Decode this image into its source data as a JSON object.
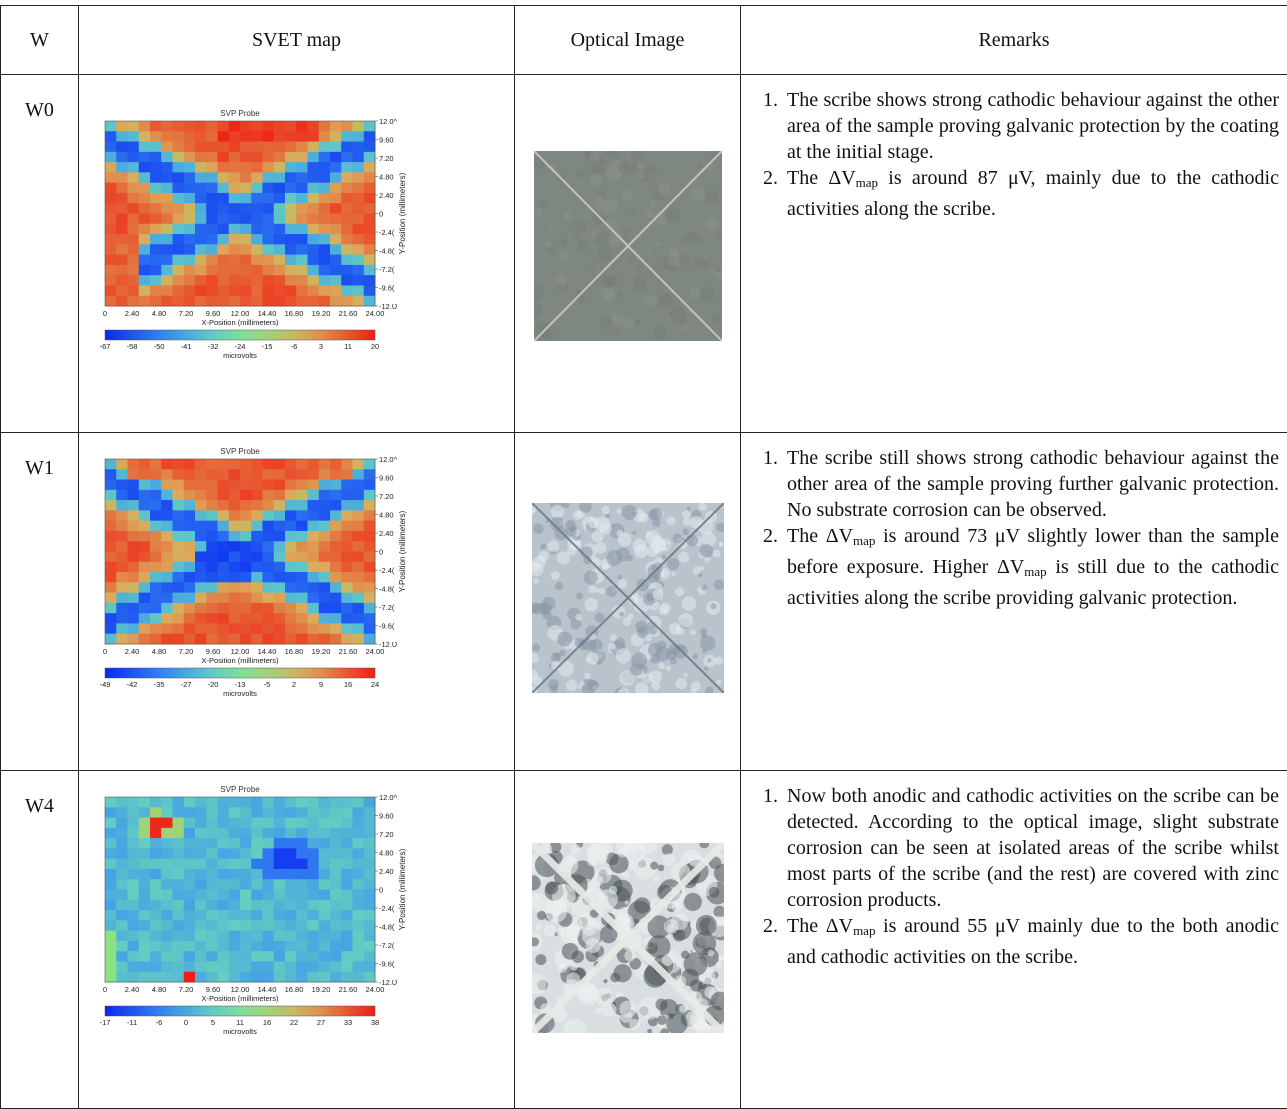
{
  "headers": {
    "w": "W",
    "svet": "SVET map",
    "optical": "Optical Image",
    "remarks": "Remarks"
  },
  "rows": [
    {
      "w": "W0",
      "remarks": [
        {
          "parts": [
            "The scribe shows strong cathodic behaviour against the other area of the sample proving galvanic protection by the coating at the initial stage."
          ]
        },
        {
          "parts": [
            "The ΔV",
            "map",
            " is around 87 μV, mainly due to the cathodic activities along the scribe."
          ]
        }
      ],
      "photo_colors": {
        "base": "#7f8781",
        "line": "#c8cdc4"
      }
    },
    {
      "w": "W1",
      "remarks": [
        {
          "parts": [
            "The scribe still shows strong cathodic behaviour against the other area of the sample proving further galvanic protection. No substrate corrosion can be observed."
          ]
        },
        {
          "parts": [
            "The ΔV",
            "map",
            " is around 73 μV slightly lower than the sample before exposure.  Higher ΔV",
            "map",
            " is still due to the cathodic activities along the scribe providing galvanic protection."
          ]
        }
      ],
      "photo_colors": {
        "base": "#b9c3cc",
        "line": "#6f7b88"
      }
    },
    {
      "w": "W4",
      "remarks": [
        {
          "parts": [
            "Now both anodic and cathodic activities on the scribe can be detected. According to the optical image, slight substrate corrosion can be seen at isolated areas of the scribe whilst most parts of the scribe (and the rest) are covered with zinc corrosion products."
          ]
        },
        {
          "parts": [
            "The ΔV",
            "map",
            " is around 55 μV mainly due to the both anodic and cathodic activities on the scribe."
          ]
        }
      ],
      "photo_colors": {
        "base": "#d9dee0",
        "line": "#e8ece8"
      }
    }
  ],
  "chart_data": [
    {
      "type": "heatmap",
      "title": "SVP Probe",
      "xlabel": "X-Position (millimeters)",
      "ylabel": "Y-Position (millimeters)",
      "x_ticks": [
        "0",
        "2.40",
        "4.80",
        "7.20",
        "9.60",
        "12.00",
        "14.40",
        "16.80",
        "19.20",
        "21.60",
        "24.00"
      ],
      "y_ticks": [
        "12.0^",
        "9.60",
        "7.20",
        "4.80",
        "2.40",
        "0",
        "-2.4(",
        "-4.8(",
        "-7.2(",
        "-9.6(",
        "-12.Ʋ"
      ],
      "colorbar_label": "microvolts",
      "colorbar_ticks": [
        "-67",
        "-58",
        "-50",
        "-41",
        "-32",
        "-24",
        "-15",
        "-6",
        "3",
        "11",
        "20"
      ],
      "range": [
        -67,
        20
      ],
      "pattern": "x_scribe"
    },
    {
      "type": "heatmap",
      "title": "SVP Probe",
      "xlabel": "X-Position (millimeters)",
      "ylabel": "Y-Position (millimeters)",
      "x_ticks": [
        "0",
        "2.40",
        "4.80",
        "7.20",
        "9.60",
        "12.00",
        "14.40",
        "16.80",
        "19.20",
        "21.60",
        "24.00"
      ],
      "y_ticks": [
        "12.0^",
        "9.60",
        "7.20",
        "4.80",
        "2.40",
        "0",
        "-2.4(",
        "-4.8(",
        "-7.2(",
        "-9.6(",
        "-12.Ʋ"
      ],
      "colorbar_label": "microvolts",
      "colorbar_ticks": [
        "-49",
        "-42",
        "-35",
        "-27",
        "-20",
        "-13",
        "-5",
        "2",
        "9",
        "16",
        "24"
      ],
      "range": [
        -49,
        24
      ],
      "pattern": "x_scribe_center"
    },
    {
      "type": "heatmap",
      "title": "SVP Probe",
      "xlabel": "X-Position (millimeters)",
      "ylabel": "Y-Position (millimeters)",
      "x_ticks": [
        "0",
        "2.40",
        "4.80",
        "7.20",
        "9.60",
        "12.00",
        "14.40",
        "16.80",
        "19.20",
        "21.60",
        "24.00"
      ],
      "y_ticks": [
        "12.0^",
        "9.60",
        "7.20",
        "4.80",
        "2.40",
        "0",
        "-2.4(",
        "-4.8(",
        "-7.2(",
        "-9.6(",
        "-12.Ʋ"
      ],
      "colorbar_label": "microvolts",
      "colorbar_ticks": [
        "-17",
        "-11",
        "-6",
        "0",
        "5",
        "11",
        "16",
        "22",
        "27",
        "33",
        "38"
      ],
      "range": [
        -17,
        38
      ],
      "pattern": "spots"
    }
  ]
}
